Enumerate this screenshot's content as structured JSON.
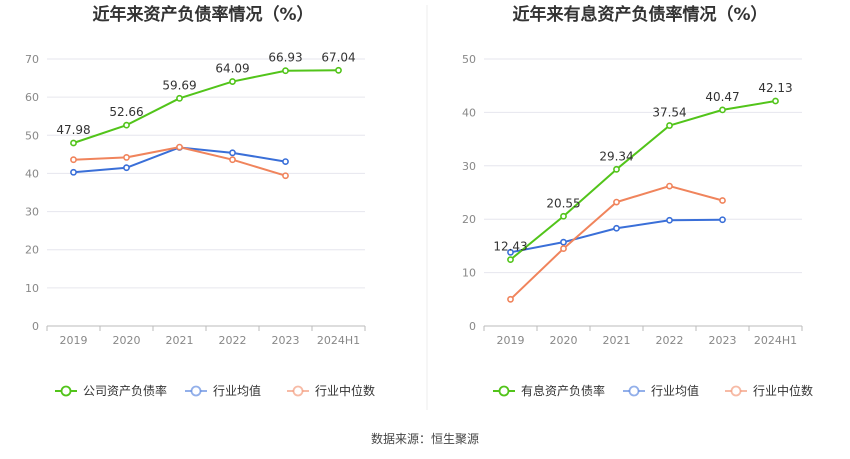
{
  "source": "数据来源：恒生聚源",
  "chart_data": [
    {
      "type": "line",
      "title": "近年来资产负债率情况（%）",
      "categories": [
        "2019",
        "2020",
        "2021",
        "2022",
        "2023",
        "2024H1"
      ],
      "ylim": [
        0,
        70
      ],
      "yticks": [
        0,
        10,
        20,
        30,
        40,
        50,
        60,
        70
      ],
      "grid": true,
      "legend": "bottom",
      "series": [
        {
          "name": "公司资产负债率",
          "color": "#52c41a",
          "values": [
            47.98,
            52.66,
            59.69,
            64.09,
            66.93,
            67.04
          ],
          "labels": [
            "47.98",
            "52.66",
            "59.69",
            "64.09",
            "66.93",
            "67.04"
          ]
        },
        {
          "name": "行业均值",
          "color": "#3a6fd8",
          "values": [
            40.3,
            41.5,
            46.8,
            45.4,
            43.1,
            null
          ]
        },
        {
          "name": "行业中位数",
          "color": "#f0845c",
          "values": [
            43.6,
            44.2,
            46.9,
            43.6,
            39.4,
            null
          ]
        }
      ]
    },
    {
      "type": "line",
      "title": "近年来有息资产负债率情况（%）",
      "categories": [
        "2019",
        "2020",
        "2021",
        "2022",
        "2023",
        "2024H1"
      ],
      "ylim": [
        0,
        50
      ],
      "yticks": [
        0,
        10,
        20,
        30,
        40,
        50
      ],
      "grid": true,
      "legend": "bottom",
      "series": [
        {
          "name": "有息资产负债率",
          "color": "#52c41a",
          "values": [
            12.43,
            20.55,
            29.34,
            37.54,
            40.47,
            42.13
          ],
          "labels": [
            "12.43",
            "20.55",
            "29.34",
            "37.54",
            "40.47",
            "42.13"
          ]
        },
        {
          "name": "行业均值",
          "color": "#3a6fd8",
          "values": [
            13.8,
            15.7,
            18.3,
            19.8,
            19.9,
            null
          ]
        },
        {
          "name": "行业中位数",
          "color": "#f0845c",
          "values": [
            5.0,
            14.5,
            23.2,
            26.2,
            23.5,
            null
          ]
        }
      ]
    }
  ]
}
